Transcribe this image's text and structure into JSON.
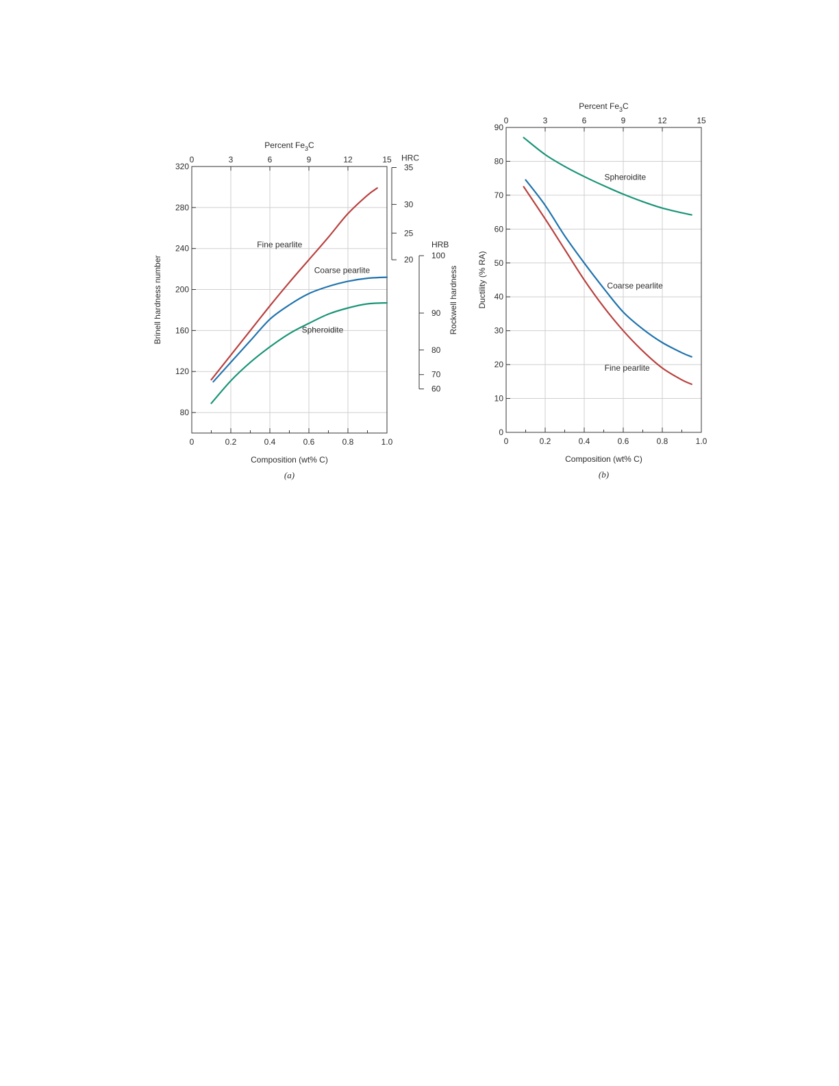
{
  "chart_data": [
    {
      "type": "line",
      "panel_label": "(a)",
      "xlabel": "Composition (wt% C)",
      "ylabel": "Brinell hardness number",
      "xlim": [
        0,
        1.0
      ],
      "ylim": [
        60,
        320
      ],
      "x_ticks": [
        "0",
        "0.2",
        "0.4",
        "0.6",
        "0.8",
        "1.0"
      ],
      "y_ticks": [
        "80",
        "120",
        "160",
        "200",
        "240",
        "280",
        "320"
      ],
      "grid": true,
      "top_axis": {
        "label": "Percent Fe3C",
        "label_base": "Percent Fe",
        "label_sub": "3",
        "label_tail": "C",
        "ticks": [
          "0",
          "3",
          "6",
          "9",
          "12",
          "15"
        ]
      },
      "hrc_axis": {
        "title": "HRC",
        "ticks": [
          "35",
          "30",
          "25",
          "20"
        ]
      },
      "hrb_axis": {
        "title": "HRB",
        "ticks": [
          "100",
          "90",
          "80",
          "70",
          "60"
        ]
      },
      "rockwell_label": "Rockwell hardness",
      "series": [
        {
          "name": "Fine pearlite",
          "color": "#b8413f",
          "x": [
            0.1,
            0.2,
            0.3,
            0.4,
            0.5,
            0.6,
            0.7,
            0.8,
            0.9,
            0.95
          ],
          "y": [
            112,
            136,
            160,
            184,
            207,
            229,
            251,
            274,
            292,
            299
          ]
        },
        {
          "name": "Coarse pearlite",
          "color": "#1f73ae",
          "x": [
            0.11,
            0.2,
            0.3,
            0.4,
            0.5,
            0.6,
            0.7,
            0.8,
            0.9,
            1.0
          ],
          "y": [
            110,
            129,
            150,
            171,
            185,
            196,
            203,
            208,
            211,
            212
          ]
        },
        {
          "name": "Spheroidite",
          "color": "#1a9477",
          "x": [
            0.1,
            0.2,
            0.3,
            0.4,
            0.5,
            0.6,
            0.7,
            0.8,
            0.9,
            1.0
          ],
          "y": [
            89,
            111,
            129,
            144,
            157,
            167,
            176,
            182,
            186,
            187
          ]
        }
      ]
    },
    {
      "type": "line",
      "panel_label": "(b)",
      "xlabel": "Composition (wt% C)",
      "ylabel": "Ductility (% RA)",
      "xlim": [
        0,
        1.0
      ],
      "ylim": [
        0,
        90
      ],
      "x_ticks": [
        "0",
        "0.2",
        "0.4",
        "0.6",
        "0.8",
        "1.0"
      ],
      "y_ticks": [
        "0",
        "10",
        "20",
        "30",
        "40",
        "50",
        "60",
        "70",
        "80",
        "90"
      ],
      "grid": true,
      "top_axis": {
        "label": "Percent Fe3C",
        "label_base": "Percent Fe",
        "label_sub": "3",
        "label_tail": "C",
        "ticks": [
          "0",
          "3",
          "6",
          "9",
          "12",
          "15"
        ]
      },
      "series": [
        {
          "name": "Spheroidite",
          "color": "#1a9477",
          "x": [
            0.09,
            0.2,
            0.3,
            0.4,
            0.5,
            0.6,
            0.7,
            0.8,
            0.9,
            0.95
          ],
          "y": [
            87,
            82,
            78.5,
            75.5,
            72.8,
            70.3,
            68.1,
            66.2,
            64.8,
            64.2
          ]
        },
        {
          "name": "Coarse pearlite",
          "color": "#1f73ae",
          "x": [
            0.1,
            0.2,
            0.3,
            0.4,
            0.5,
            0.6,
            0.7,
            0.8,
            0.9,
            0.95
          ],
          "y": [
            74.5,
            67,
            58,
            50,
            42.5,
            35.5,
            30.5,
            26.5,
            23.5,
            22.3
          ]
        },
        {
          "name": "Fine pearlite",
          "color": "#b8413f",
          "x": [
            0.09,
            0.2,
            0.3,
            0.4,
            0.5,
            0.6,
            0.7,
            0.8,
            0.9,
            0.95
          ],
          "y": [
            72.5,
            63,
            54,
            45,
            37,
            30,
            24,
            19,
            15.5,
            14.2
          ]
        }
      ]
    }
  ]
}
